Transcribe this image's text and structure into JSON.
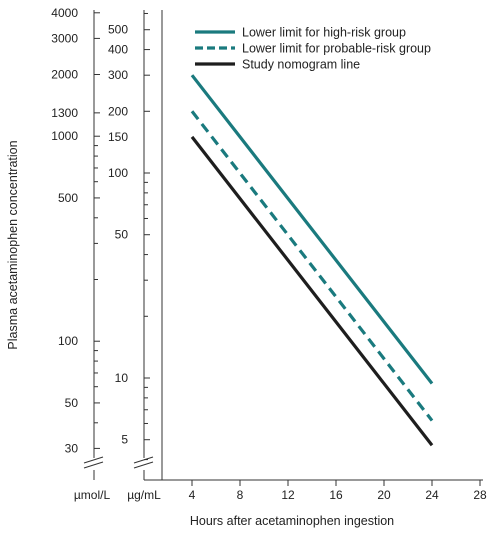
{
  "chart_data": {
    "type": "line",
    "title": "",
    "ylabel": "Plasma acetaminophen concentration",
    "xlabel": "Hours after acetaminophen ingestion",
    "x_unit_labels": {
      "umol": "µmol/L",
      "ug": "µg/mL"
    },
    "x": {
      "ticks": [
        4,
        8,
        12,
        16,
        20,
        24,
        28
      ],
      "range": [
        4,
        28
      ]
    },
    "y_ug": {
      "scale": "log",
      "range": [
        3.7,
        600
      ],
      "ticks": [
        500,
        400,
        300,
        200,
        150,
        100,
        50,
        10,
        5
      ]
    },
    "y_umol": {
      "scale": "log",
      "ticks": [
        4000,
        3000,
        2000,
        1300,
        1000,
        500,
        100,
        50,
        30
      ]
    },
    "series": [
      {
        "name": "Lower limit for high-risk group",
        "x": [
          4,
          24
        ],
        "y": [
          300,
          9.4
        ],
        "color": "#1a7a7e",
        "style": "solid"
      },
      {
        "name": "Lower limit for probable-risk group",
        "x": [
          4,
          24
        ],
        "y": [
          200,
          6.2
        ],
        "color": "#1a7a7e",
        "style": "dashed"
      },
      {
        "name": "Study nomogram line",
        "x": [
          4,
          24
        ],
        "y": [
          150,
          4.7
        ],
        "color": "#1e1e1e",
        "style": "solid"
      }
    ],
    "legend_position": "top-right",
    "grid": false
  }
}
